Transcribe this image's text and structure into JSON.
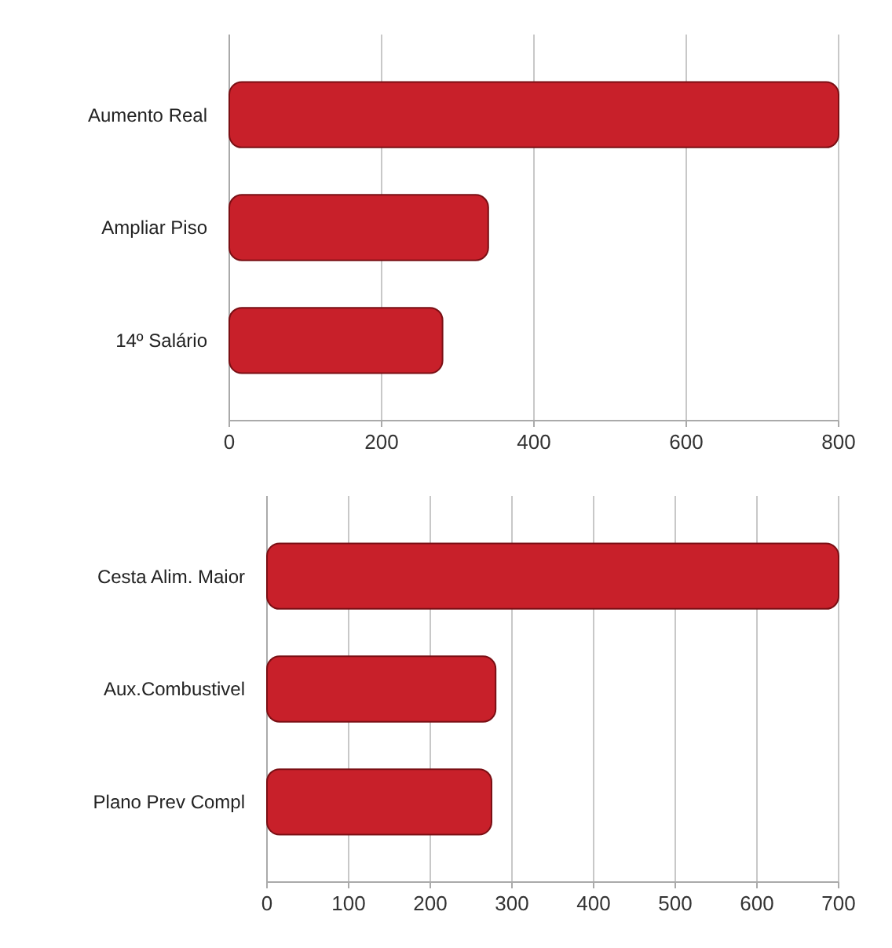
{
  "chart_data": [
    {
      "type": "bar",
      "orientation": "horizontal",
      "categories": [
        "Aumento Real",
        "Ampliar Piso",
        "14º Salário"
      ],
      "values": [
        800,
        340,
        280
      ],
      "color": "#c8202a",
      "xlim": [
        0,
        800
      ],
      "xticks": [
        0,
        200,
        400,
        600,
        800
      ],
      "grid": "x"
    },
    {
      "type": "bar",
      "orientation": "horizontal",
      "categories": [
        "Cesta Alim. Maior",
        "Aux.Combustivel",
        "Plano Prev Compl"
      ],
      "values": [
        700,
        280,
        275
      ],
      "color": "#c8202a",
      "xlim": [
        0,
        700
      ],
      "xticks": [
        0,
        100,
        200,
        300,
        400,
        500,
        600,
        700
      ],
      "grid": "x"
    }
  ]
}
